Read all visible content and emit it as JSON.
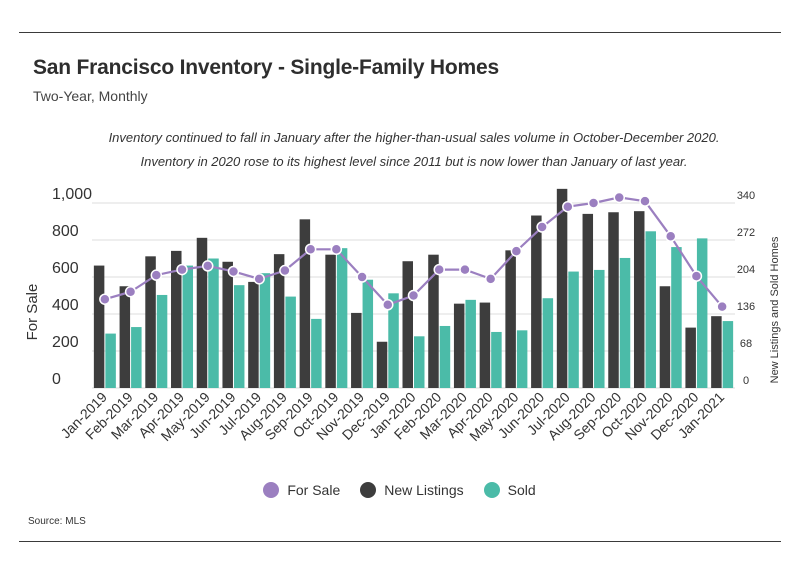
{
  "title": "San Francisco Inventory - Single-Family Homes",
  "subtitle": "Two-Year, Monthly",
  "annotation_lines": [
    "Inventory continued to fall in January after the higher-than-usual sales volume in October-December 2020.",
    "Inventory in 2020 rose to its highest level since 2011 but is now lower than January of last year."
  ],
  "source": "Source: MLS",
  "colors": {
    "for_sale": "#9b7fc0",
    "new_listings": "#3d3d3d",
    "sold": "#4bbba8",
    "grid": "#dcdcdc"
  },
  "legend": [
    {
      "label": "For Sale",
      "color_key": "for_sale"
    },
    {
      "label": "New Listings",
      "color_key": "new_listings"
    },
    {
      "label": "Sold",
      "color_key": "sold"
    }
  ],
  "chart_data": {
    "type": "bar",
    "title": "San Francisco Inventory - Single-Family Homes",
    "subtitle": "Two-Year, Monthly",
    "ylabel": "For Sale",
    "y2label": "New Listings and Sold Homes",
    "ylim": [
      0,
      1000
    ],
    "y2lim": [
      0,
      340
    ],
    "yticks": [
      "0",
      "200",
      "400",
      "600",
      "800",
      "1,000"
    ],
    "y2ticks": [
      "0",
      "68",
      "136",
      "204",
      "272",
      "340"
    ],
    "grid": true,
    "legend_position": "bottom",
    "categories": [
      "Jan-2019",
      "Feb-2019",
      "Mar-2019",
      "Apr-2019",
      "May-2019",
      "Jun-2019",
      "Jul-2019",
      "Aug-2019",
      "Sep-2019",
      "Oct-2019",
      "Nov-2019",
      "Dec-2019",
      "Jan-2020",
      "Feb-2020",
      "Mar-2020",
      "Apr-2020",
      "May-2020",
      "Jun-2020",
      "Jul-2020",
      "Aug-2020",
      "Sep-2020",
      "Oct-2020",
      "Nov-2020",
      "Dec-2020",
      "Jan-2021"
    ],
    "series": [
      {
        "name": "New Listings",
        "type": "bar",
        "axis": "right",
        "values": [
          225,
          187,
          242,
          252,
          276,
          232,
          195,
          246,
          310,
          245,
          138,
          85,
          233,
          245,
          155,
          157,
          253,
          317,
          366,
          320,
          323,
          325,
          187,
          111,
          132
        ]
      },
      {
        "name": "Sold",
        "type": "bar",
        "axis": "right",
        "values": [
          100,
          112,
          171,
          225,
          238,
          189,
          211,
          168,
          127,
          257,
          199,
          174,
          95,
          114,
          162,
          103,
          106,
          165,
          214,
          217,
          239,
          288,
          259,
          275,
          123
        ]
      },
      {
        "name": "For Sale",
        "type": "line",
        "axis": "left",
        "values": [
          480,
          520,
          610,
          640,
          660,
          630,
          590,
          635,
          750,
          750,
          600,
          450,
          500,
          640,
          640,
          590,
          740,
          870,
          980,
          1000,
          1030,
          1010,
          820,
          605,
          440
        ]
      }
    ]
  }
}
